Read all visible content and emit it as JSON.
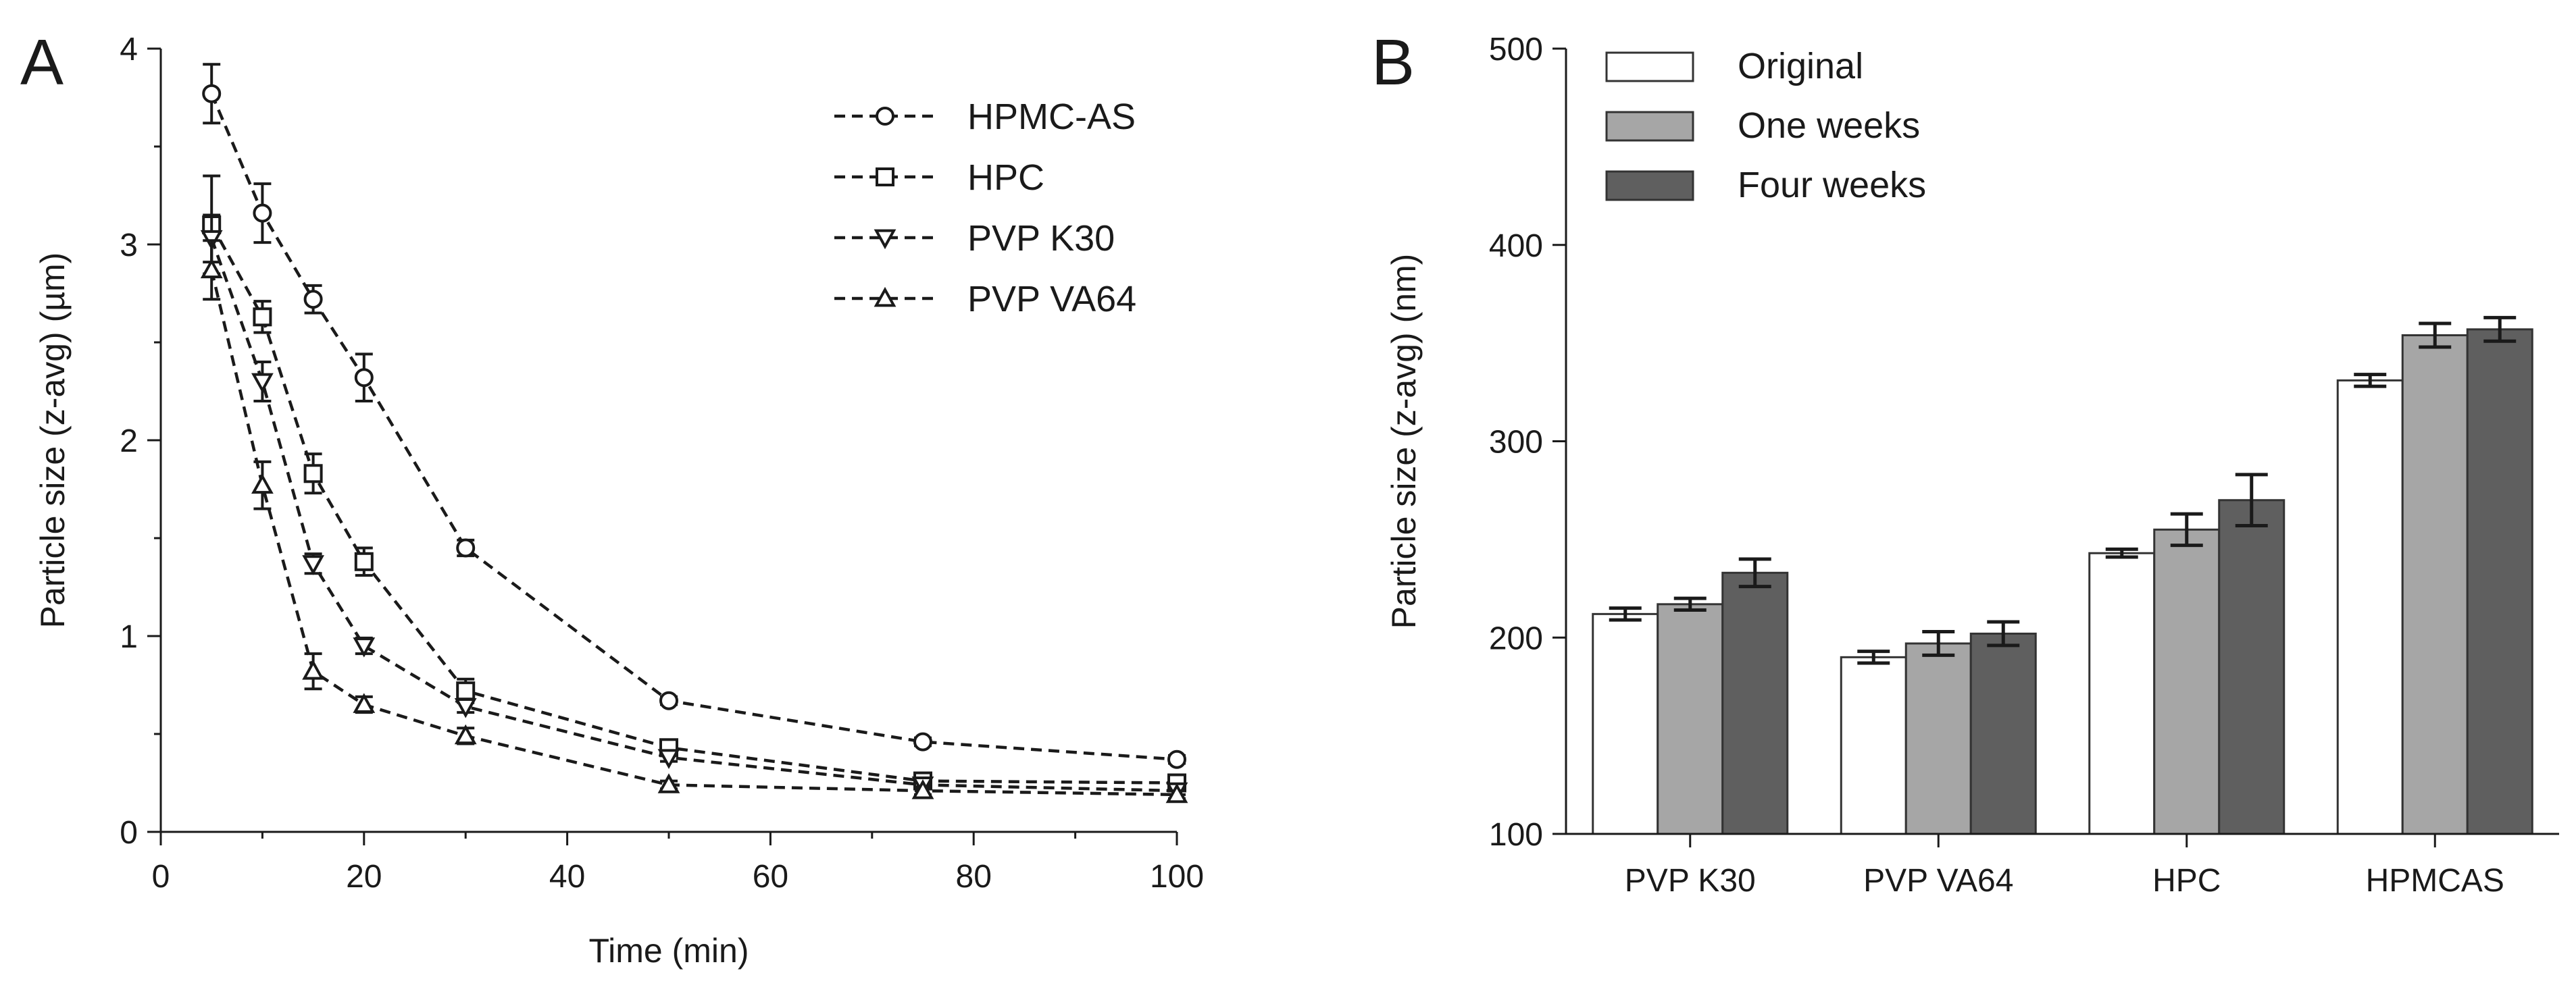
{
  "chart_data": [
    {
      "panel": "A",
      "type": "line",
      "title": "",
      "xlabel": "Time (min)",
      "ylabel": "Particle size (z-avg) (µm)",
      "xlim": [
        0,
        100
      ],
      "ylim": [
        0,
        4
      ],
      "xticks": [
        0,
        20,
        40,
        60,
        80,
        100
      ],
      "yticks": [
        0,
        1,
        2,
        3,
        4
      ],
      "grid": false,
      "legend_position": "top-right",
      "x": [
        5,
        10,
        15,
        20,
        30,
        50,
        75,
        100
      ],
      "series": [
        {
          "name": "HPMC-AS",
          "marker": "circle",
          "values": [
            3.77,
            3.16,
            2.72,
            2.32,
            1.45,
            0.67,
            0.46,
            0.37
          ],
          "errors": [
            0.15,
            0.15,
            0.07,
            0.12,
            0.04,
            0.02,
            0.02,
            0.02
          ]
        },
        {
          "name": "HPC",
          "marker": "square",
          "values": [
            3.1,
            2.63,
            1.83,
            1.38,
            0.72,
            0.43,
            0.26,
            0.25
          ],
          "errors": [
            0.25,
            0.08,
            0.1,
            0.07,
            0.06,
            0.03,
            0.02,
            0.02
          ]
        },
        {
          "name": "PVP K30",
          "marker": "triangle-down",
          "values": [
            3.03,
            2.3,
            1.37,
            0.95,
            0.64,
            0.38,
            0.24,
            0.21
          ],
          "errors": [
            0.12,
            0.1,
            0.05,
            0.04,
            0.03,
            0.02,
            0.02,
            0.02
          ]
        },
        {
          "name": "PVP VA64",
          "marker": "triangle-up",
          "values": [
            2.87,
            1.77,
            0.82,
            0.65,
            0.49,
            0.24,
            0.21,
            0.19
          ],
          "errors": [
            0.15,
            0.12,
            0.09,
            0.04,
            0.04,
            0.02,
            0.02,
            0.02
          ]
        }
      ]
    },
    {
      "panel": "B",
      "type": "bar",
      "title": "",
      "xlabel": "",
      "ylabel": "Particle size (z-avg) (nm)",
      "ylim": [
        100,
        500
      ],
      "yticks": [
        100,
        200,
        300,
        400,
        500
      ],
      "grid": false,
      "legend_position": "top-left",
      "categories": [
        "PVP K30",
        "PVP VA64",
        "HPC",
        "HPMCAS"
      ],
      "series": [
        {
          "name": "Original",
          "color": "#ffffff",
          "values": [
            212,
            190,
            243,
            331
          ],
          "errors": [
            3,
            3,
            2,
            3
          ]
        },
        {
          "name": "One weeks",
          "color": "#a6a6a6",
          "values": [
            217,
            197,
            255,
            354
          ],
          "errors": [
            3,
            6,
            8,
            6
          ]
        },
        {
          "name": "Four weeks",
          "color": "#5f5f5f",
          "values": [
            233,
            202,
            270,
            357
          ],
          "errors": [
            7,
            6,
            13,
            6
          ]
        }
      ]
    }
  ]
}
